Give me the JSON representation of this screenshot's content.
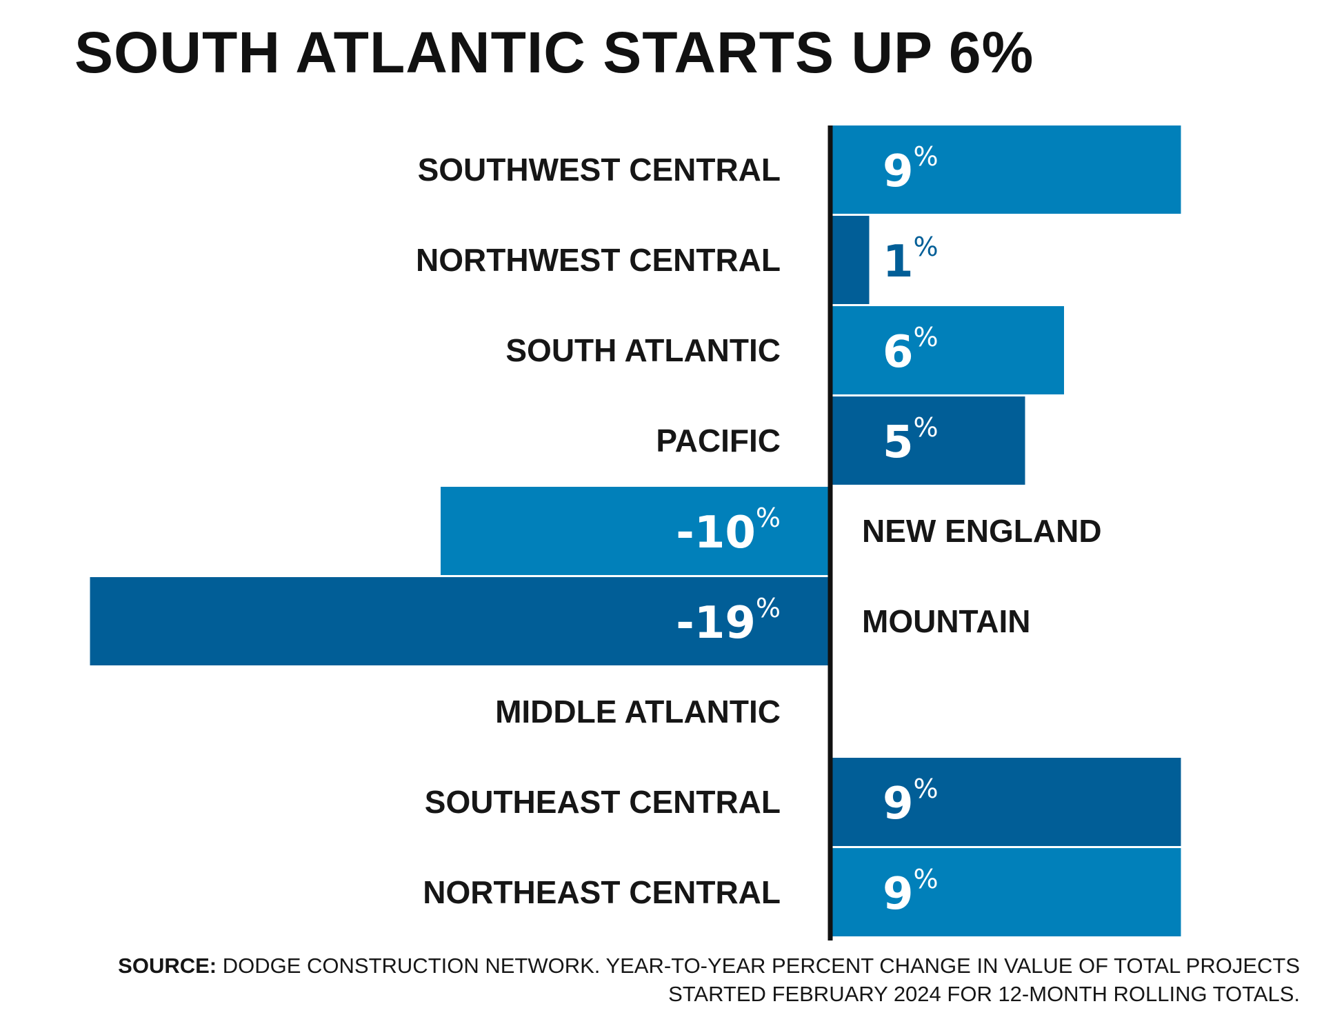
{
  "chart_data": {
    "type": "bar",
    "orientation": "horizontal",
    "title": "SOUTH ATLANTIC STARTS UP 6%",
    "categories": [
      "SOUTHWEST CENTRAL",
      "NORTHWEST CENTRAL",
      "SOUTH ATLANTIC",
      "PACIFIC",
      "NEW ENGLAND",
      "MOUNTAIN",
      "MIDDLE ATLANTIC",
      "SOUTHEAST CENTRAL",
      "NORTHEAST CENTRAL"
    ],
    "values": [
      9,
      1,
      6,
      5,
      -10,
      -19,
      0,
      9,
      9
    ],
    "value_labels": [
      "9",
      "1",
      "6",
      "5",
      "-10",
      "-19",
      "",
      "9",
      "9"
    ],
    "unit": "%",
    "xlim": [
      -19,
      9
    ],
    "grid": false,
    "legend": "none",
    "colors": {
      "light_blue": "#0180BA",
      "dark_blue": "#015E97",
      "axis": "#111111"
    },
    "bar_colors": [
      "light_blue",
      "dark_blue",
      "light_blue",
      "dark_blue",
      "light_blue",
      "dark_blue",
      "dark_blue",
      "dark_blue",
      "light_blue"
    ]
  },
  "source": {
    "label": "SOURCE:",
    "text": " DODGE CONSTRUCTION NETWORK. YEAR-TO-YEAR PERCENT CHANGE IN VALUE OF TOTAL PROJECTS STARTED FEBRUARY 2024 FOR 12-MONTH ROLLING TOTALS."
  }
}
